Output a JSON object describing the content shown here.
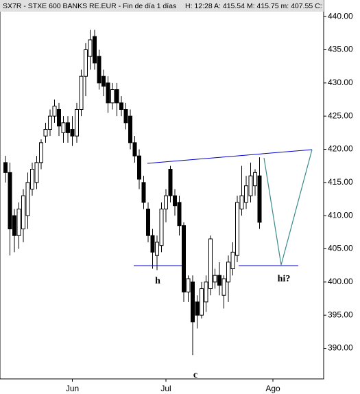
{
  "chart_data": {
    "type": "candlestick",
    "header": "SX7R - STXE 600 BANKS RE.EUR - Fin de día 1 días",
    "stats": "H: 12:28  A: 415.54  M: 415.75  m: 407.55  C:",
    "annotations": [
      "h",
      "c",
      "hi?"
    ],
    "categories": [
      null,
      null,
      null,
      null,
      null,
      null,
      null,
      null,
      null,
      null,
      null,
      null,
      null,
      null,
      null,
      "Jun",
      null,
      null,
      null,
      null,
      null,
      null,
      null,
      null,
      null,
      null,
      null,
      null,
      null,
      null,
      null,
      null,
      null,
      null,
      null,
      null,
      "Jul",
      null,
      null,
      null,
      null,
      null,
      null,
      null,
      null,
      null,
      null,
      null,
      null,
      null,
      null,
      null,
      null,
      null,
      null,
      null,
      null,
      null,
      null,
      null,
      "Ago",
      null,
      null,
      null,
      null,
      null,
      null,
      null,
      null,
      null,
      null,
      null
    ],
    "open": [
      418,
      416.5,
      410,
      407,
      408,
      410,
      414,
      415,
      418,
      422,
      423,
      425,
      426,
      422.5,
      424,
      423,
      422,
      426,
      431,
      434,
      437,
      434,
      431,
      430,
      427,
      429,
      427,
      426,
      425,
      421,
      419,
      415,
      411,
      407,
      404,
      405.5,
      411,
      417,
      413,
      412,
      408.5,
      398.5,
      400,
      397,
      395,
      397,
      399,
      400,
      401,
      398,
      400,
      402,
      404,
      411,
      412,
      413,
      414.5,
      416,
      null,
      null,
      null,
      null,
      null,
      null,
      null,
      null,
      null,
      null,
      null,
      null,
      null,
      null
    ],
    "high": [
      419,
      418,
      411,
      412,
      414,
      416.5,
      418,
      419,
      421.5,
      424,
      426,
      427.5,
      427,
      425,
      425,
      425,
      427,
      432,
      436,
      438,
      438,
      435,
      432,
      431,
      430,
      430,
      428,
      427,
      426,
      422,
      420,
      416,
      412,
      408,
      407,
      412,
      414,
      417.5,
      414,
      413,
      409,
      401,
      401,
      398,
      400,
      401,
      407,
      402,
      403,
      401,
      404,
      406,
      413,
      417.5,
      416,
      418,
      417,
      418.8,
      null,
      null,
      null,
      null,
      null,
      null,
      null,
      null,
      null,
      null,
      null,
      null,
      null,
      null
    ],
    "low": [
      415,
      404,
      404.5,
      405,
      406,
      408,
      413,
      414,
      417,
      421,
      422,
      424,
      422,
      421,
      421,
      420.5,
      421,
      425,
      428,
      432,
      432,
      429,
      428,
      425.5,
      426,
      425,
      425,
      423,
      420,
      418,
      414,
      411,
      406,
      402,
      401.8,
      404.5,
      409,
      412,
      410,
      407,
      397,
      397,
      389,
      393,
      394.5,
      395.5,
      398,
      399,
      398,
      396,
      397,
      401,
      403,
      410,
      411,
      412,
      413,
      408,
      null,
      null,
      null,
      null,
      null,
      null,
      null,
      null,
      null,
      null,
      null,
      null,
      null,
      null
    ],
    "close": [
      416.5,
      408,
      407,
      411,
      413,
      415,
      417,
      418,
      421,
      423,
      425,
      426.5,
      423.5,
      424,
      422.5,
      422,
      426,
      431,
      435,
      436.5,
      433,
      430,
      429.5,
      427,
      429,
      427,
      426,
      424,
      421,
      419,
      415.5,
      412,
      407,
      404.5,
      406,
      411,
      413,
      413,
      411.5,
      408.5,
      398.5,
      400.5,
      394,
      395,
      399,
      400,
      406.5,
      401,
      399.5,
      400.5,
      403,
      404.5,
      412,
      413,
      414.5,
      416,
      416.5,
      409,
      null,
      null,
      null,
      null,
      null,
      null,
      null,
      null,
      null,
      null,
      null,
      null,
      null,
      null
    ],
    "up_color": "#ffffff",
    "down_color": "#000000",
    "ylim": [
      385.4,
      442.5
    ],
    "yticks": [
      {
        "value": 390,
        "label": "390.00"
      },
      {
        "value": 395,
        "label": "395.00"
      },
      {
        "value": 400,
        "label": "400.00"
      },
      {
        "value": 405,
        "label": "405.00"
      },
      {
        "value": 410,
        "label": "410.00"
      },
      {
        "value": 415,
        "label": "415.00"
      },
      {
        "value": 420,
        "label": "420.00"
      },
      {
        "value": 425,
        "label": "425.00"
      },
      {
        "value": 430,
        "label": "430.00"
      },
      {
        "value": 435,
        "label": "435.00"
      },
      {
        "value": 440,
        "label": "440.00"
      }
    ],
    "grid": false
  }
}
